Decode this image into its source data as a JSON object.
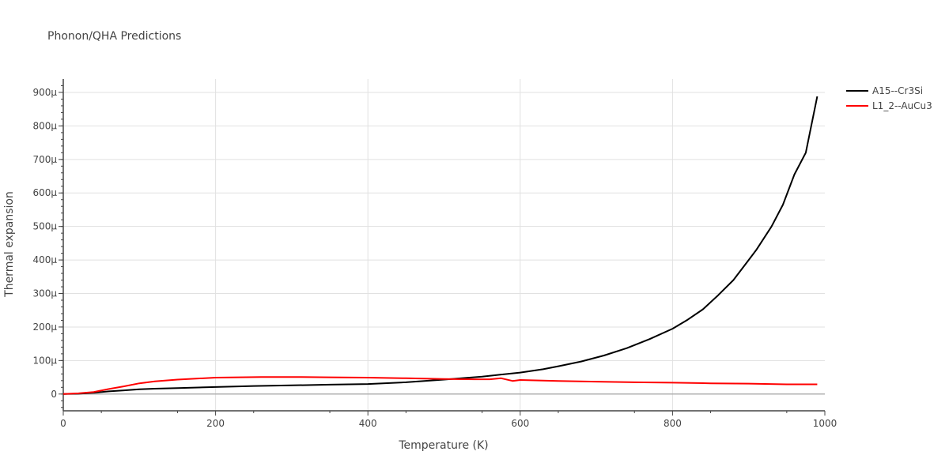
{
  "chart_data": {
    "type": "line",
    "title": "Phonon/QHA Predictions",
    "xlabel": "Temperature (K)",
    "ylabel": "Thermal expansion",
    "xlim": [
      0,
      1000
    ],
    "ylim": [
      -5e-05,
      0.00094
    ],
    "x_ticks": [
      0,
      200,
      400,
      600,
      800,
      1000
    ],
    "x_tick_labels": [
      "0",
      "200",
      "400",
      "600",
      "800",
      "1000"
    ],
    "y_ticks": [
      0,
      0.0001,
      0.0002,
      0.0003,
      0.0004,
      0.0005,
      0.0006,
      0.0007,
      0.0008,
      0.0009
    ],
    "y_tick_labels": [
      "0",
      "100μ",
      "200μ",
      "300μ",
      "400μ",
      "500μ",
      "600μ",
      "700μ",
      "800μ",
      "900μ"
    ],
    "grid": true,
    "legend_position": "top-right",
    "series": [
      {
        "name": "A15--Cr3Si",
        "color": "#000000",
        "x": [
          0,
          20,
          40,
          60,
          80,
          100,
          120,
          150,
          200,
          250,
          300,
          350,
          400,
          450,
          500,
          550,
          600,
          630,
          650,
          680,
          710,
          740,
          770,
          800,
          820,
          840,
          860,
          880,
          900,
          910,
          930,
          945,
          960,
          975,
          990
        ],
        "y": [
          0,
          1e-06,
          4e-06,
          8e-06,
          1.1e-05,
          1.4e-05,
          1.6e-05,
          1.8e-05,
          2.1e-05,
          2.4e-05,
          2.6e-05,
          2.8e-05,
          3e-05,
          3.5e-05,
          4.3e-05,
          5.2e-05,
          6.4e-05,
          7.4e-05,
          8.3e-05,
          9.7e-05,
          0.000115,
          0.000137,
          0.000164,
          0.000195,
          0.000222,
          0.000253,
          0.000295,
          0.00034,
          0.0004,
          0.00043,
          0.0005,
          0.000565,
          0.000655,
          0.00072,
          0.000888
        ]
      },
      {
        "name": "L1_2--AuCu3",
        "color": "#ff0000",
        "x": [
          0,
          20,
          40,
          60,
          80,
          100,
          120,
          150,
          200,
          260,
          300,
          350,
          400,
          450,
          500,
          540,
          560,
          575,
          590,
          600,
          650,
          700,
          750,
          800,
          850,
          900,
          950,
          990
        ],
        "y": [
          0,
          2e-06,
          6e-06,
          1.5e-05,
          2.3e-05,
          3.2e-05,
          3.8e-05,
          4.3e-05,
          4.9e-05,
          5.1e-05,
          5.1e-05,
          5e-05,
          4.9e-05,
          4.7e-05,
          4.5e-05,
          4.4e-05,
          4.4e-05,
          4.7e-05,
          3.9e-05,
          4.2e-05,
          3.9e-05,
          3.7e-05,
          3.5e-05,
          3.4e-05,
          3.2e-05,
          3.1e-05,
          2.9e-05,
          2.9e-05
        ]
      }
    ]
  }
}
